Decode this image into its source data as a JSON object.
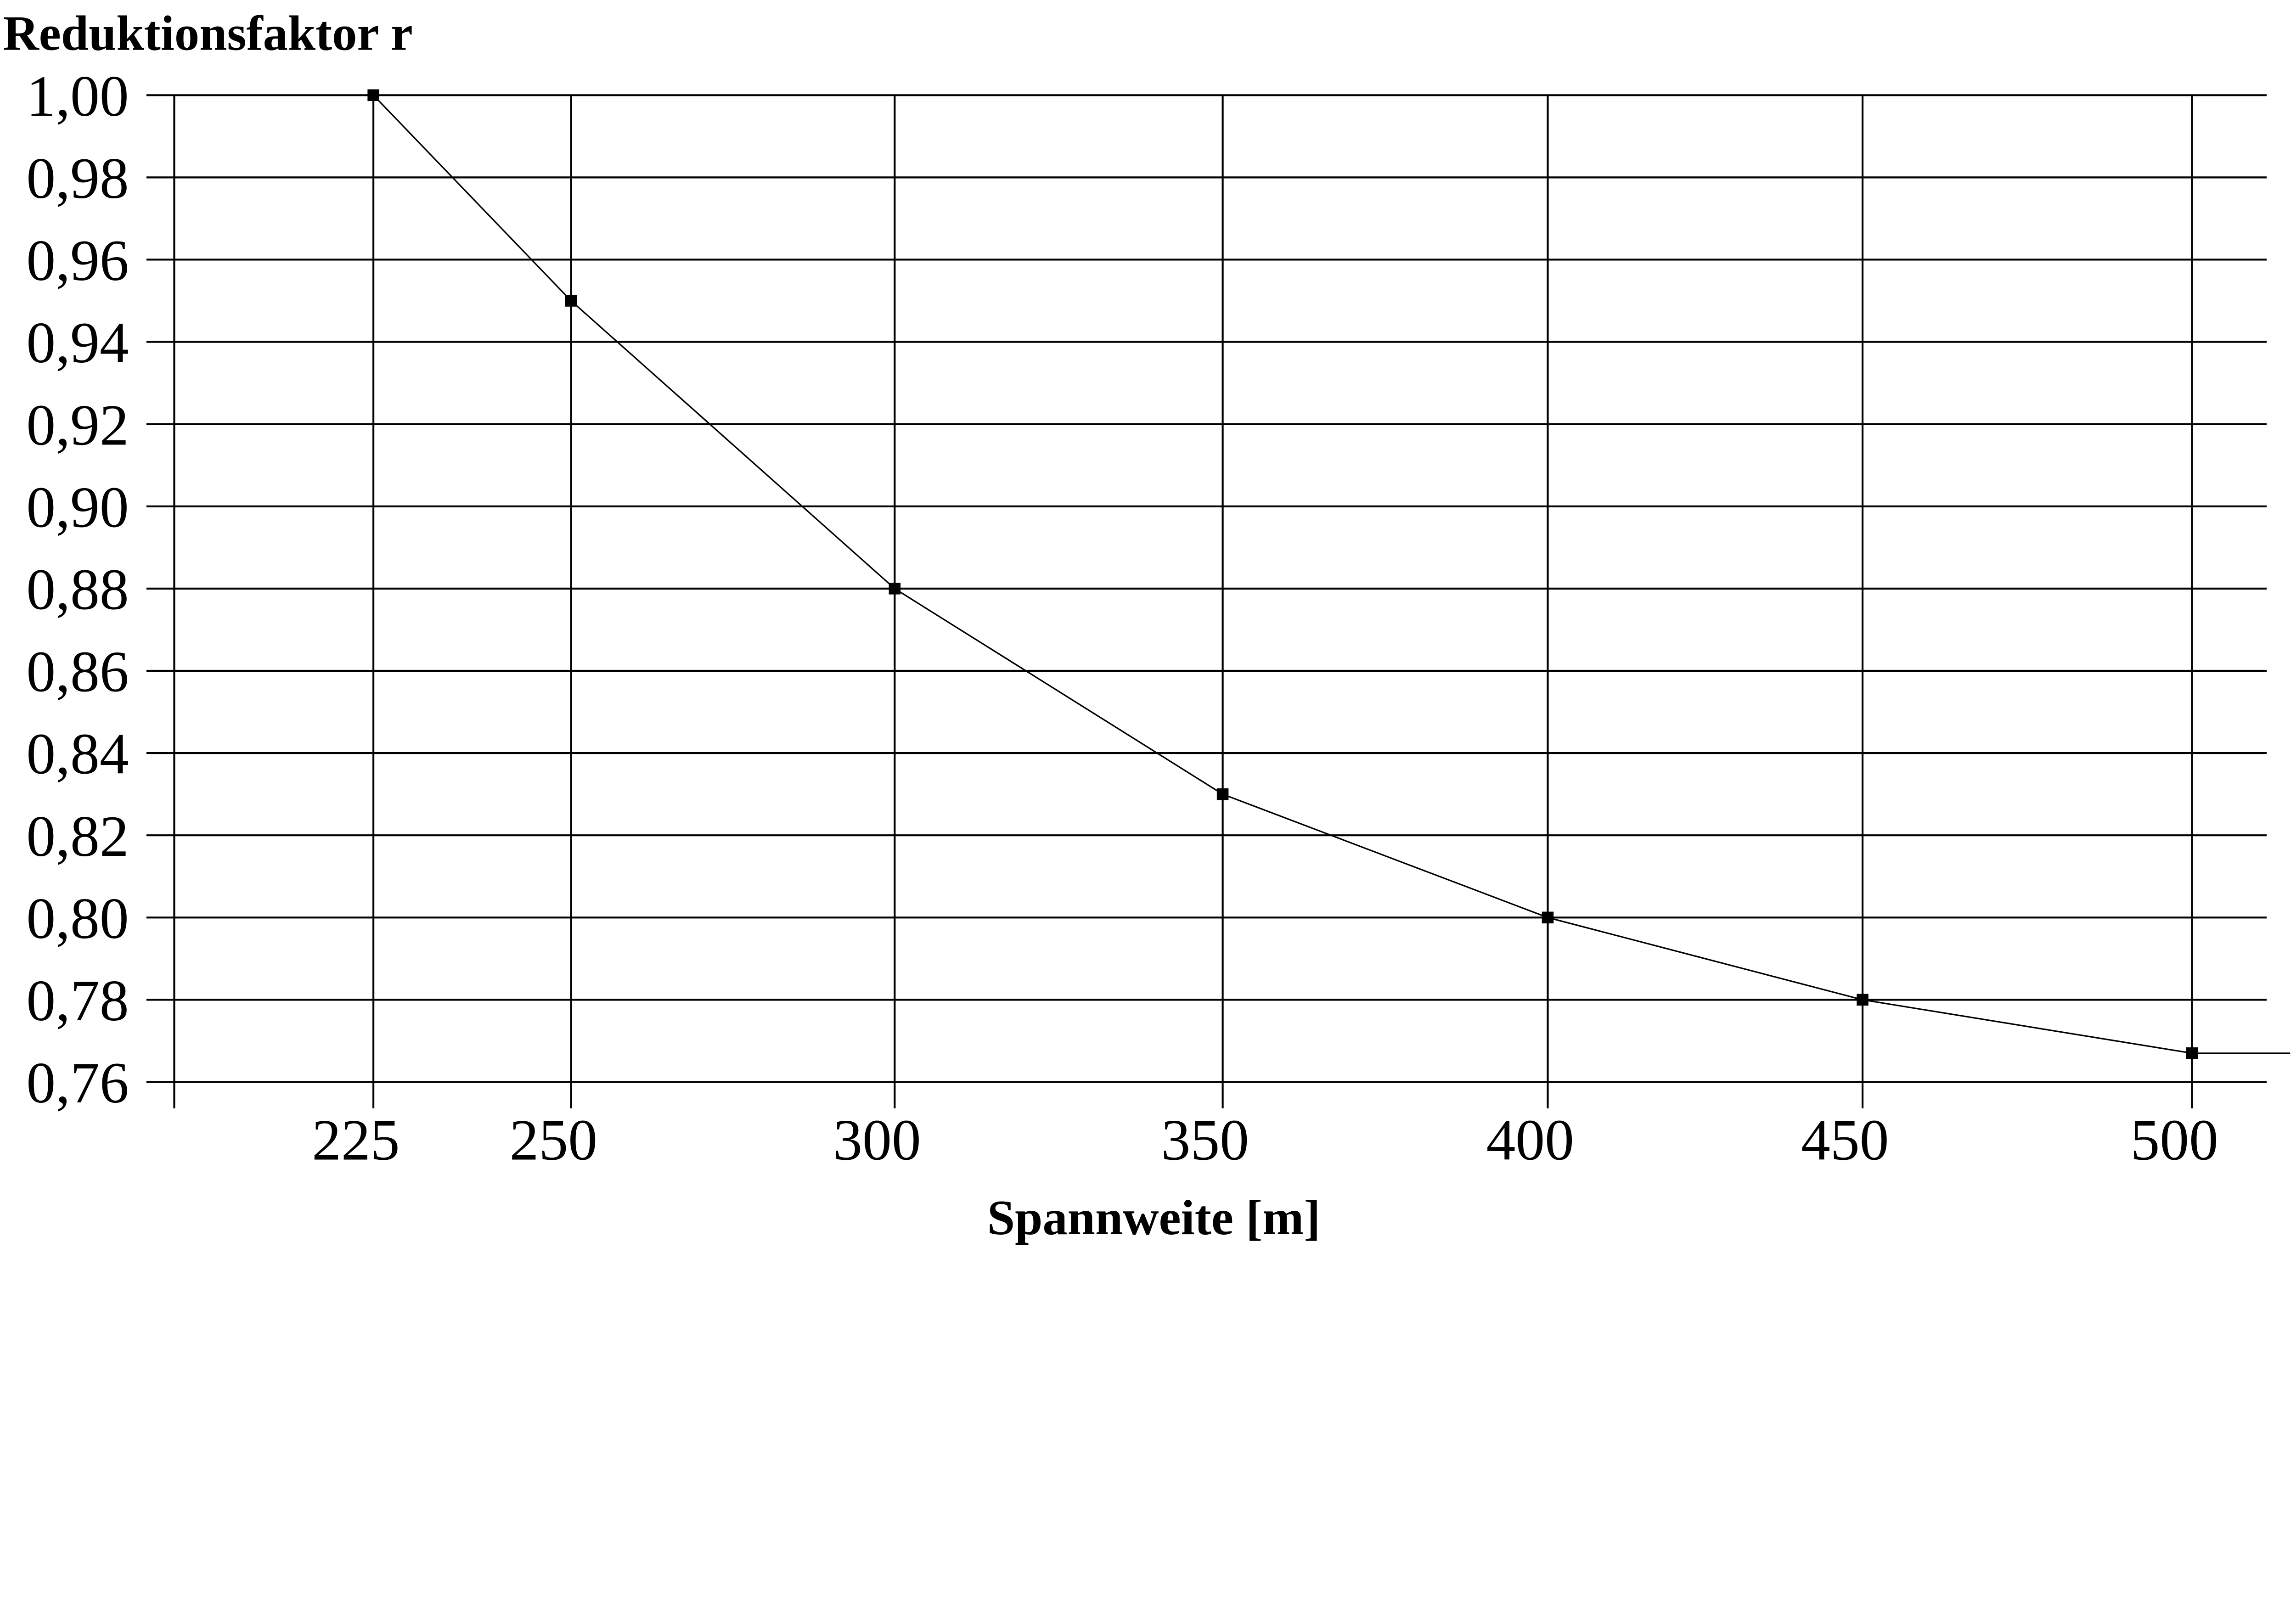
{
  "chart_data": {
    "type": "line",
    "title": "Reduktionsfaktor r",
    "xlabel": "Spannweite [m]",
    "ylabel": "Reduktionsfaktor r",
    "x": [
      225,
      250,
      300,
      350,
      400,
      450,
      500
    ],
    "x_tick_labels": [
      "225",
      "250",
      "300",
      "350",
      "400",
      "450",
      "500"
    ],
    "y_tick_labels": [
      "1,00",
      "0,98",
      "0,96",
      "0,94",
      "0,92",
      "0,90",
      "0,88",
      "0,86",
      "0,84",
      "0,82",
      "0,80",
      "0,78",
      "0,76"
    ],
    "y_ticks": [
      1.0,
      0.98,
      0.96,
      0.94,
      0.92,
      0.9,
      0.88,
      0.86,
      0.84,
      0.82,
      0.8,
      0.78,
      0.76
    ],
    "ylim": [
      0.76,
      1.0
    ],
    "grid": true,
    "series": [
      {
        "name": "r",
        "values": [
          1.0,
          0.95,
          0.88,
          0.83,
          0.8,
          0.78,
          0.767
        ],
        "marker": "square",
        "color": "#000000"
      }
    ]
  }
}
